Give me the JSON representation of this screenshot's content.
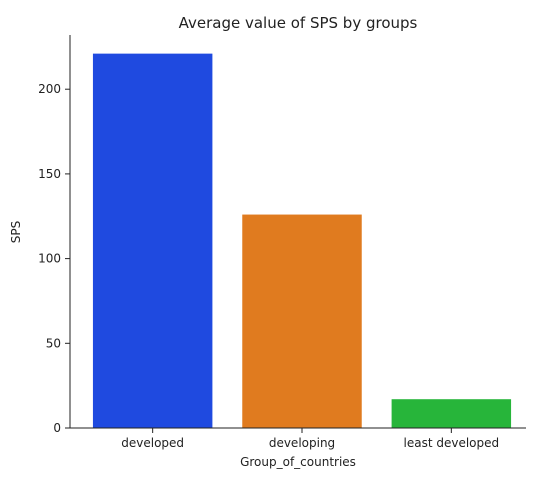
{
  "chart_data": {
    "type": "bar",
    "title": "Average value of SPS by groups",
    "xlabel": "Group_of_countries",
    "ylabel": "SPS",
    "categories": [
      "developed",
      "developing",
      "least developed"
    ],
    "values": [
      221,
      126,
      17
    ],
    "colors": [
      "#1f4ae0",
      "#e07b1f",
      "#27b53a"
    ],
    "yticks": [
      0,
      50,
      100,
      150,
      200
    ],
    "ylim": [
      0,
      232
    ],
    "grid": false,
    "legend": "none"
  }
}
